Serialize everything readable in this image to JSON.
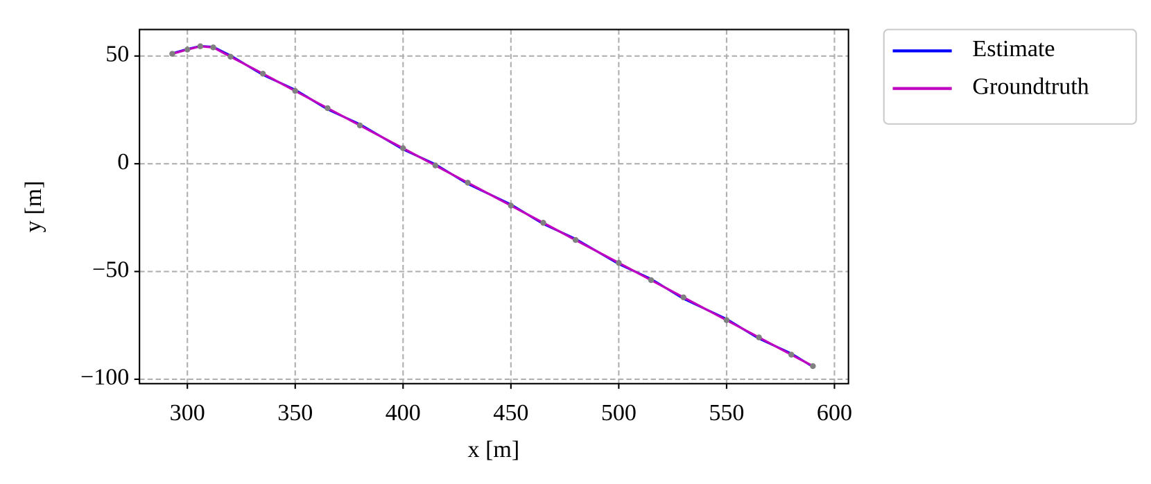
{
  "chart_data": {
    "type": "line",
    "xlabel": "x [m]",
    "ylabel": "y [m]",
    "xlim": [
      277.8,
      606.5
    ],
    "ylim": [
      -102.05,
      62.3
    ],
    "xticks": [
      300,
      350,
      400,
      450,
      500,
      550,
      600
    ],
    "yticks": [
      50,
      0,
      {
        "value": -50,
        "label": "−50"
      },
      {
        "value": -100,
        "label": "−100"
      }
    ],
    "grid": true,
    "legend": "outside upper right",
    "series": [
      {
        "name": "Estimate",
        "color": "#0000ff",
        "x": [
          293,
          300,
          306,
          312,
          320,
          335,
          350,
          365,
          380,
          400,
          415,
          430,
          450,
          465,
          480,
          500,
          515,
          530,
          550,
          565,
          580,
          590
        ],
        "values": [
          51.2,
          53.2,
          54.6,
          54.2,
          50.2,
          41.3,
          34.3,
          25.3,
          18.3,
          6.7,
          -0.3,
          -9.3,
          -18.9,
          -27.9,
          -34.9,
          -46.5,
          -53.5,
          -62.6,
          -72.1,
          -81.1,
          -88.1,
          -94.2
        ]
      },
      {
        "name": "Groundtruth",
        "color": "#bf00bf",
        "x": [
          293,
          300,
          306,
          312,
          320,
          335,
          350,
          365,
          380,
          400,
          415,
          430,
          450,
          465,
          480,
          500,
          515,
          530,
          550,
          565,
          580,
          590
        ],
        "values": [
          51,
          53,
          54.5,
          54,
          49.7,
          41.8,
          33.8,
          25.8,
          17.8,
          7.2,
          -0.8,
          -8.8,
          -19.4,
          -27.4,
          -35.4,
          -46,
          -54,
          -62,
          -72.6,
          -80.6,
          -88.6,
          -93.9
        ]
      },
      {
        "color": "#808080",
        "mode": "markers",
        "x": [
          293,
          300,
          306,
          312,
          320,
          335,
          350,
          365,
          380,
          400,
          415,
          430,
          450,
          465,
          480,
          500,
          515,
          530,
          550,
          565,
          580,
          590
        ],
        "values": [
          51,
          53,
          54.5,
          54,
          49.7,
          41.8,
          33.8,
          25.8,
          17.8,
          7.2,
          -0.8,
          -8.8,
          -19.4,
          -27.4,
          -35.4,
          -46,
          -54,
          -62,
          -72.6,
          -80.6,
          -88.6,
          -93.9
        ]
      }
    ]
  }
}
